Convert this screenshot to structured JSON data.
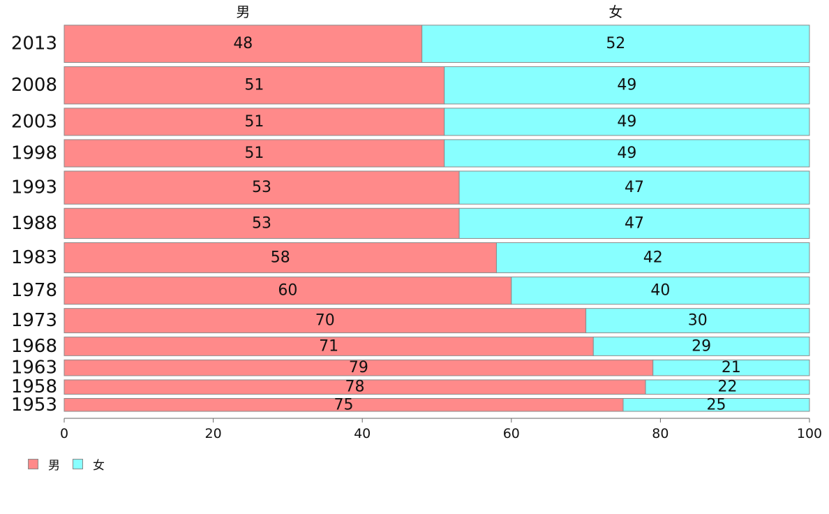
{
  "chart_data": {
    "type": "bar",
    "orientation": "horizontal",
    "stacked": true,
    "categories": [
      "2013",
      "2008",
      "2003",
      "1998",
      "1993",
      "1988",
      "1983",
      "1978",
      "1973",
      "1968",
      "1963",
      "1958",
      "1953"
    ],
    "series": [
      {
        "name": "男",
        "color": "#ff8a8a",
        "values": [
          48,
          51,
          51,
          51,
          53,
          53,
          58,
          60,
          70,
          71,
          79,
          78,
          75
        ]
      },
      {
        "name": "女",
        "color": "#88ffff",
        "values": [
          52,
          49,
          49,
          49,
          47,
          47,
          42,
          40,
          30,
          29,
          21,
          22,
          25
        ]
      }
    ],
    "row_weights": [
      1.3,
      1.3,
      0.95,
      0.95,
      1.15,
      1.05,
      1.05,
      0.95,
      0.85,
      0.65,
      0.55,
      0.5,
      0.45
    ],
    "xlim": [
      0,
      100
    ],
    "xticks": [
      "0",
      "20",
      "40",
      "60",
      "80",
      "100"
    ],
    "column_headers": [
      "男",
      "女"
    ],
    "grid": false,
    "legend_position": "bottom-left"
  }
}
